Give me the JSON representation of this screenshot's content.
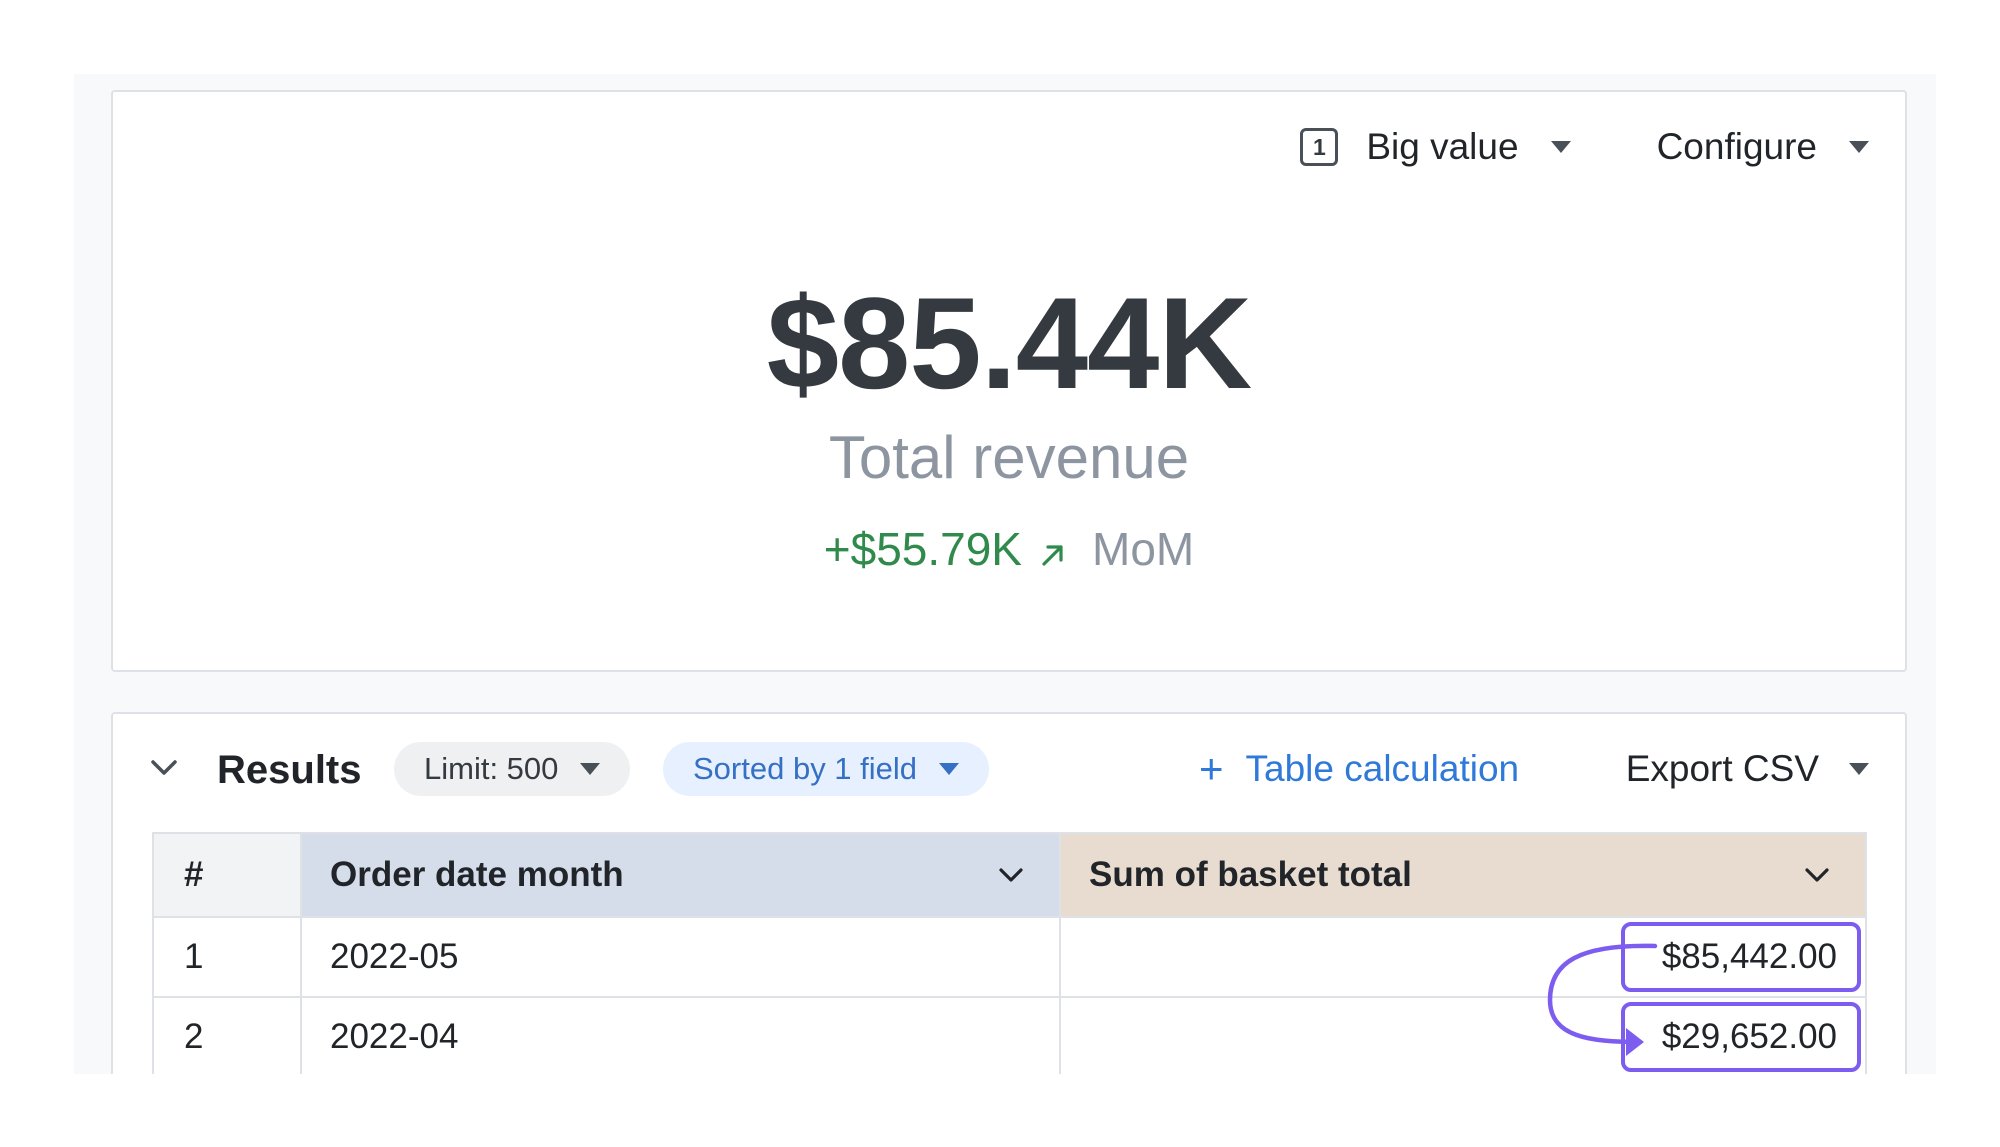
{
  "chart_toolbar": {
    "chart_type_number": "1",
    "chart_type_label": "Big value",
    "configure_label": "Configure"
  },
  "big_value": {
    "value": "$85.44K",
    "label": "Total revenue",
    "change": "+$55.79K",
    "change_period": "MoM",
    "change_color": "#2f8a4b",
    "change_icon": "arrow-up-right-icon"
  },
  "results": {
    "title": "Results",
    "limit_label": "Limit: 500",
    "sort_label": "Sorted by 1 field",
    "table_calc_label": "Table calculation",
    "export_label": "Export CSV",
    "columns": [
      "#",
      "Order date month",
      "Sum of basket total"
    ],
    "column_colors": [
      "#f1f3f5",
      "#d5dcea",
      "#e8dcd0"
    ],
    "rows": [
      {
        "index": "1",
        "month": "2022-05",
        "sum": "$85,442.00"
      },
      {
        "index": "2",
        "month": "2022-04",
        "sum": "$29,652.00"
      }
    ],
    "highlight_color": "#7d5cf0"
  }
}
